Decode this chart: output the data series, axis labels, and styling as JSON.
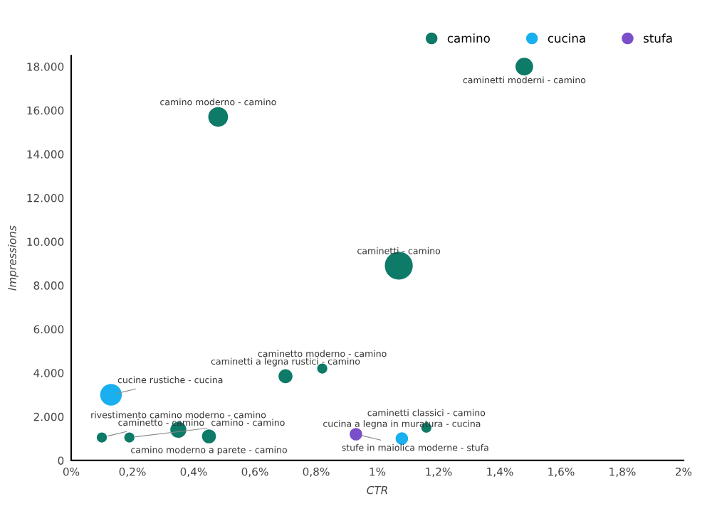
{
  "chart_data": {
    "type": "bubble",
    "xlabel": "CTR",
    "ylabel": "Impressions",
    "xlim": [
      0,
      2
    ],
    "ylim": [
      0,
      18500
    ],
    "xticks": [
      {
        "value": 0,
        "label": "0%"
      },
      {
        "value": 0.2,
        "label": "0,2%"
      },
      {
        "value": 0.4,
        "label": "0,4%"
      },
      {
        "value": 0.6,
        "label": "0,6%"
      },
      {
        "value": 0.8,
        "label": "0,8%"
      },
      {
        "value": 1,
        "label": "1%"
      },
      {
        "value": 1.2,
        "label": "1,2%"
      },
      {
        "value": 1.4,
        "label": "1,4%"
      },
      {
        "value": 1.6,
        "label": "1,6%"
      },
      {
        "value": 1.8,
        "label": "1,8%"
      },
      {
        "value": 2,
        "label": "2%"
      }
    ],
    "yticks": [
      0,
      {
        "value": 2000,
        "label": "2.000"
      },
      {
        "value": 4000,
        "label": "4.000"
      },
      {
        "value": 6000,
        "label": "6.000"
      },
      {
        "value": 8000,
        "label": "8.000"
      },
      {
        "value": 10000,
        "label": "10.000"
      },
      {
        "value": 12000,
        "label": "12.000"
      },
      {
        "value": 14000,
        "label": "14.000"
      },
      {
        "value": 16000,
        "label": "16.000"
      },
      {
        "value": 18000,
        "label": "18.000"
      }
    ],
    "grid": false,
    "legend": "top right",
    "marker": "circle",
    "series": [
      {
        "name": "camino",
        "color": "#0e7a68",
        "x": [
          0.48,
          1.48,
          1.07,
          0.82,
          0.7,
          0.35,
          0.45,
          0.1,
          0.19,
          1.16
        ],
        "values": [
          15700,
          18000,
          8900,
          4200,
          3850,
          1400,
          1100,
          1050,
          1050,
          1500
        ],
        "sizes": [
          0.5,
          0.4,
          1,
          0.13,
          0.25,
          0.33,
          0.25,
          0.13,
          0.13,
          0.13
        ]
      },
      {
        "name": "cucina",
        "color": "#1ab0f0",
        "x": [
          0.13,
          1.08
        ],
        "values": [
          3000,
          1000
        ],
        "sizes": [
          0.6,
          0.2
        ]
      },
      {
        "name": "stufa",
        "color": "#7b4fc9",
        "x": [
          0.93
        ],
        "values": [
          1200
        ],
        "sizes": [
          0.2
        ]
      }
    ],
    "annotations": [
      {
        "text": "camino moderno - camino",
        "x": 0.48,
        "y": 15700
      },
      {
        "text": "caminetti moderni - camino",
        "x": 1.48,
        "y": 18000
      },
      {
        "text": "caminetti - camino",
        "x": 1.07,
        "y": 8900
      },
      {
        "text": "caminetto moderno - camino",
        "x": 0.82,
        "y": 4200
      },
      {
        "text": "caminetti a legna rustici - camino",
        "x": 0.7,
        "y": 3850
      },
      {
        "text": "rivestimento camino moderno - camino",
        "x": 0.35,
        "y": 1400
      },
      {
        "text": "camino moderno a parete - camino",
        "x": 0.45,
        "y": 1100
      },
      {
        "text": "caminetto - camino",
        "x": 0.1,
        "y": 1050
      },
      {
        "text": "camino - camino",
        "x": 0.19,
        "y": 1050
      },
      {
        "text": "caminetti classici - camino",
        "x": 1.16,
        "y": 1500
      },
      {
        "text": "cucine rustiche - cucina",
        "x": 0.13,
        "y": 3000
      },
      {
        "text": "cucina a legna in muratura - cucina",
        "x": 1.08,
        "y": 1000
      },
      {
        "text": "stufe in maiolica moderne - stufa",
        "x": 0.93,
        "y": 1200
      }
    ]
  }
}
